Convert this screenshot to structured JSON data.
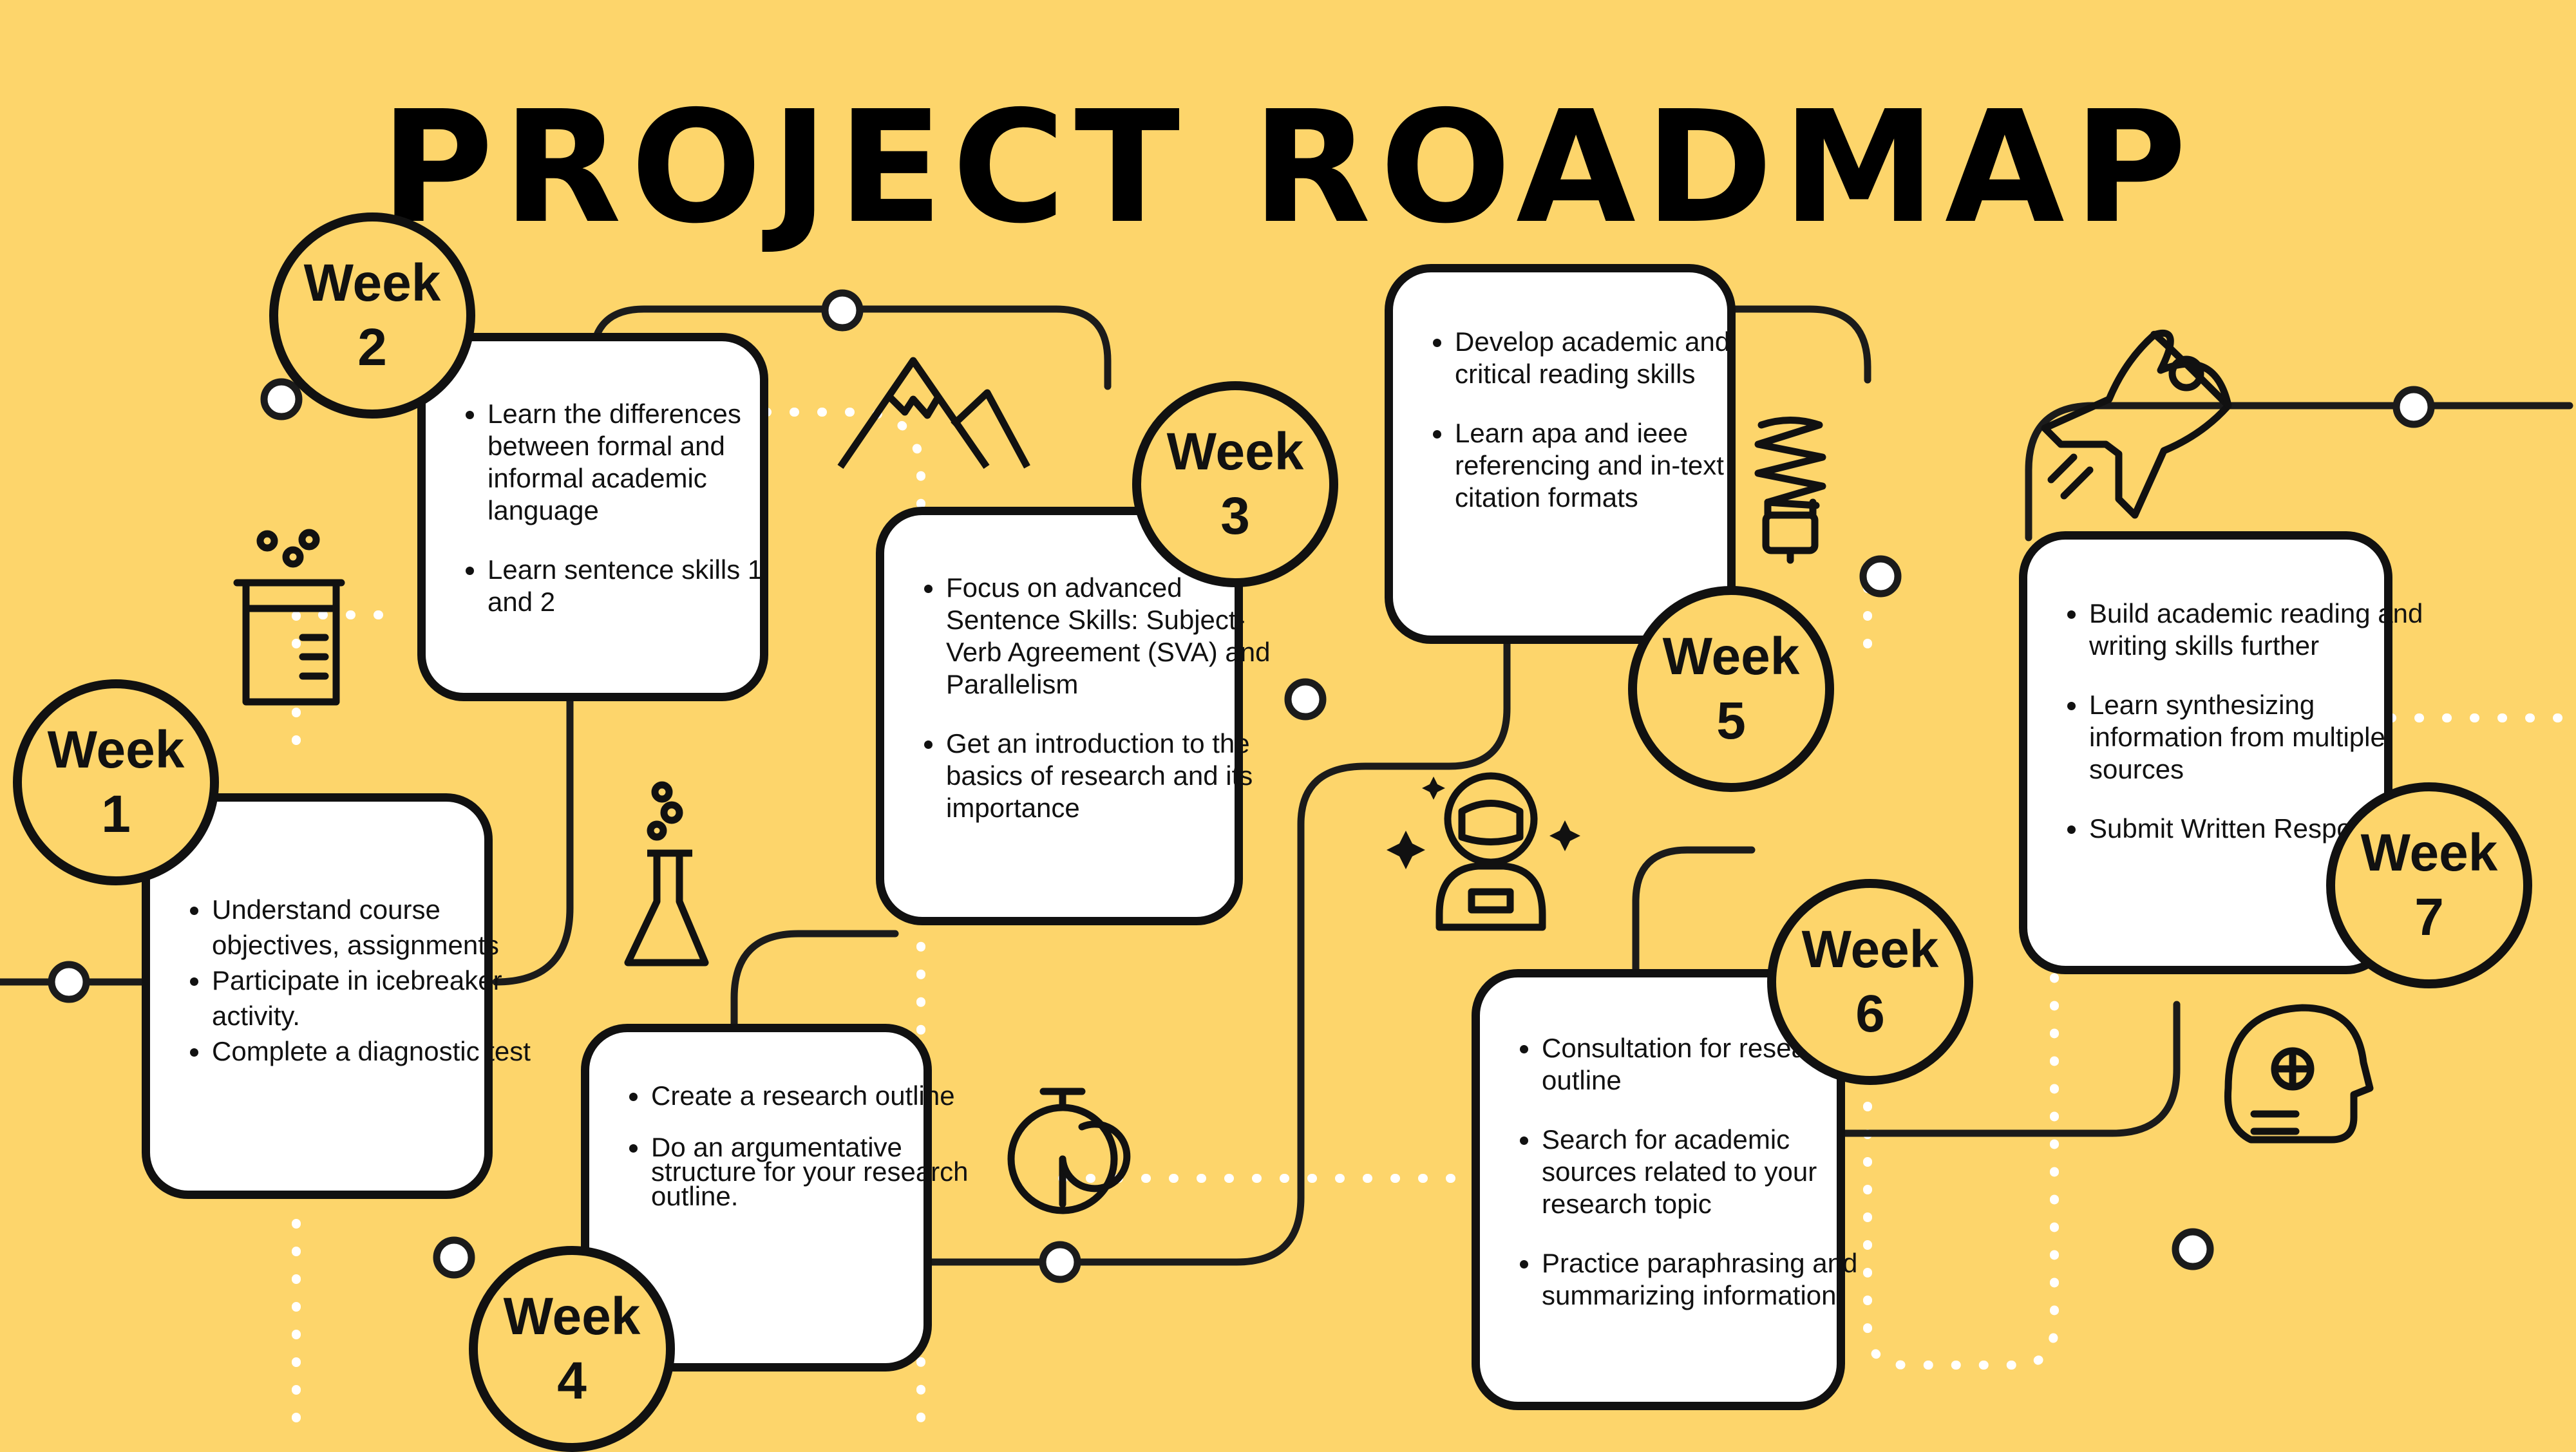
{
  "title": "PROJECT ROADMAP",
  "colors": {
    "background": "#fdd56b",
    "ink": "#111111",
    "card": "#ffffff",
    "dots": "#ffffff"
  },
  "weeks": [
    {
      "label": "Week\n1",
      "items": [
        "Understand course objectives, assignments",
        "Participate in icebreaker activity.",
        "Complete a diagnostic test"
      ]
    },
    {
      "label": "Week\n2",
      "items": [
        "Learn the differences between formal and informal academic language",
        "Learn sentence skills 1 and 2"
      ]
    },
    {
      "label": "Week\n3",
      "items": [
        "Focus on advanced Sentence Skills: Subject-Verb Agreement (SVA) and Parallelism",
        "Get an introduction to the basics of research and its importance"
      ]
    },
    {
      "label": "Week\n4",
      "items": [
        "Create a research outline",
        "Do an argumentative structure for your research outline."
      ]
    },
    {
      "label": "Week\n5",
      "items": [
        "Develop academic and critical reading skills",
        "Learn apa and ieee referencing and in-text citation formats"
      ]
    },
    {
      "label": "Week\n6",
      "items": [
        "Consultation for research outline",
        "Search for academic sources related to your research topic",
        "Practice paraphrasing and summarizing information"
      ]
    },
    {
      "label": "Week\n7",
      "items": [
        "Build academic reading and writing skills further",
        "Learn synthesizing information from multiple sources",
        "Submit Written Response"
      ]
    }
  ],
  "icons": [
    "beaker-icon",
    "mountains-icon",
    "flask-icon",
    "stopwatch-icon",
    "lightbulb-icon",
    "astronaut-icon",
    "rocket-icon",
    "robot-head-icon"
  ]
}
